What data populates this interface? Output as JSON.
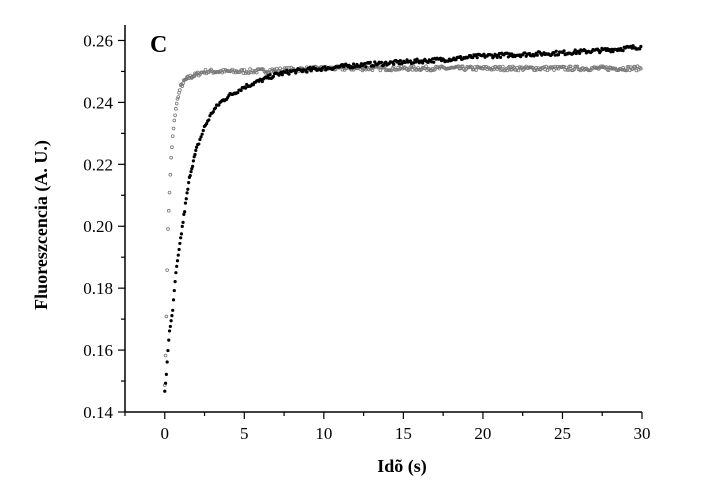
{
  "chart_data": {
    "type": "scatter",
    "panel_label": "C",
    "xlabel": "Idõ (s)",
    "ylabel": "Fluoreszcencia (A. U.)",
    "xlim": [
      -2.5,
      30
    ],
    "ylim": [
      0.14,
      0.265
    ],
    "x_ticks": [
      0,
      5,
      10,
      15,
      20,
      25,
      30
    ],
    "y_ticks": [
      0.14,
      0.16,
      0.18,
      0.2,
      0.22,
      0.24,
      0.26
    ],
    "y_tick_labels": [
      "0.14",
      "0.16",
      "0.18",
      "0.20",
      "0.22",
      "0.24",
      "0.26"
    ],
    "x_tick_labels": [
      "0",
      "5",
      "10",
      "15",
      "20",
      "25",
      "30"
    ],
    "grid": false,
    "legend": "none",
    "series": [
      {
        "marker": "open-circle",
        "color": "#777777",
        "points": [
          [
            0.0,
            0.149
          ],
          [
            0.05,
            0.158
          ],
          [
            0.1,
            0.171
          ],
          [
            0.15,
            0.186
          ],
          [
            0.2,
            0.199
          ],
          [
            0.3,
            0.211
          ],
          [
            0.4,
            0.222
          ],
          [
            0.5,
            0.229
          ],
          [
            0.6,
            0.234
          ],
          [
            0.7,
            0.238
          ],
          [
            0.8,
            0.241
          ],
          [
            0.9,
            0.243
          ],
          [
            1.0,
            0.245
          ],
          [
            1.25,
            0.247
          ],
          [
            1.5,
            0.248
          ],
          [
            2.0,
            0.249
          ],
          [
            2.5,
            0.25
          ],
          [
            3.0,
            0.25
          ],
          [
            5.0,
            0.25
          ],
          [
            10.0,
            0.251
          ],
          [
            15.0,
            0.251
          ],
          [
            20.0,
            0.251
          ],
          [
            25.0,
            0.251
          ],
          [
            30.0,
            0.251
          ]
        ]
      },
      {
        "marker": "filled-circle",
        "color": "#000000",
        "points": [
          [
            0.0,
            0.147
          ],
          [
            0.1,
            0.152
          ],
          [
            0.2,
            0.16
          ],
          [
            0.3,
            0.166
          ],
          [
            0.5,
            0.173
          ],
          [
            0.7,
            0.185
          ],
          [
            1.0,
            0.196
          ],
          [
            1.3,
            0.207
          ],
          [
            1.6,
            0.217
          ],
          [
            2.0,
            0.225
          ],
          [
            2.5,
            0.232
          ],
          [
            3.0,
            0.237
          ],
          [
            3.5,
            0.24
          ],
          [
            4.0,
            0.242
          ],
          [
            5.0,
            0.245
          ],
          [
            6.0,
            0.247
          ],
          [
            7.0,
            0.249
          ],
          [
            8.0,
            0.25
          ],
          [
            10.0,
            0.251
          ],
          [
            12.0,
            0.252
          ],
          [
            15.0,
            0.253
          ],
          [
            18.0,
            0.254
          ],
          [
            20.0,
            0.255
          ],
          [
            25.0,
            0.256
          ],
          [
            28.0,
            0.257
          ],
          [
            30.0,
            0.258
          ]
        ]
      }
    ]
  }
}
